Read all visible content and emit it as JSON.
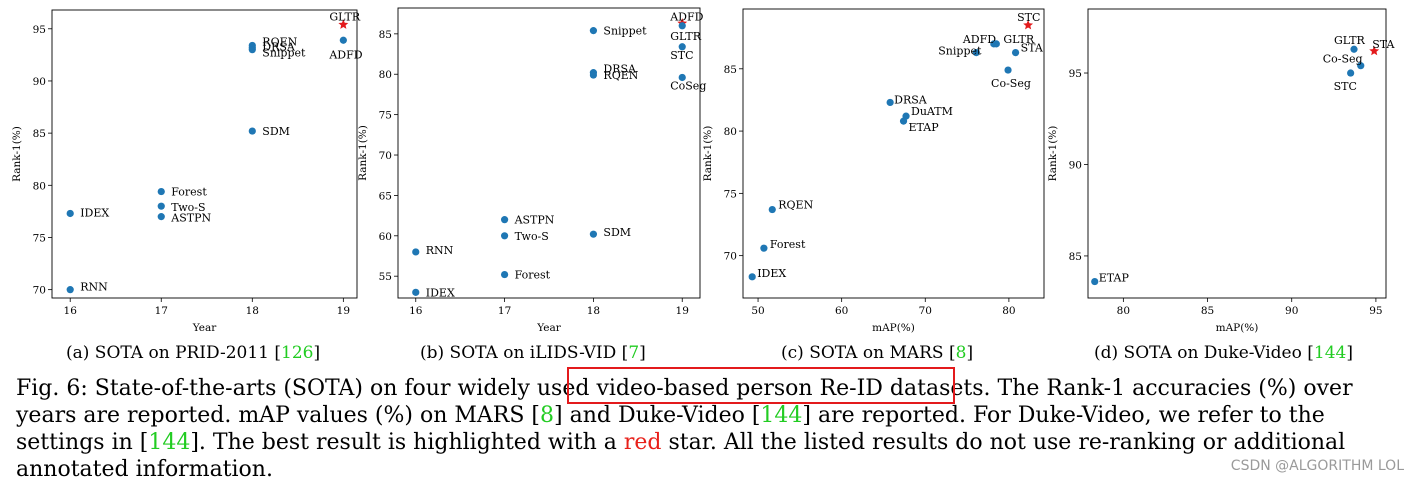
{
  "chart_data": [
    {
      "type": "scatter",
      "xlabel": "Year",
      "ylabel": "Rank-1(%)",
      "xlim": [
        15.8,
        19.15
      ],
      "ylim": [
        69.2,
        96.8
      ],
      "xticks": [
        16,
        17,
        18,
        19
      ],
      "yticks": [
        70,
        75,
        80,
        85,
        90,
        95
      ],
      "points": [
        {
          "label": "GLTR",
          "x": 19,
          "y": 95.4,
          "star": true
        },
        {
          "label": "ADFD",
          "x": 19,
          "y": 93.9
        },
        {
          "label": "RQEN",
          "x": 18,
          "y": 93.4
        },
        {
          "label": "DRSA",
          "x": 18,
          "y": 93.2
        },
        {
          "label": "Snippet",
          "x": 18,
          "y": 93.0
        },
        {
          "label": "SDM",
          "x": 18,
          "y": 85.2
        },
        {
          "label": "Forest",
          "x": 17,
          "y": 79.4
        },
        {
          "label": "Two-S",
          "x": 17,
          "y": 78.0
        },
        {
          "label": "ASTPN",
          "x": 17,
          "y": 77.0
        },
        {
          "label": "IDEX",
          "x": 16,
          "y": 77.3
        },
        {
          "label": "RNN",
          "x": 16,
          "y": 70.0
        }
      ],
      "caption_text": "(a) SOTA on PRID-2011 [",
      "caption_ref": "126",
      "caption_end": "]"
    },
    {
      "type": "scatter",
      "xlabel": "Year",
      "ylabel": "Rank-1(%)",
      "xlim": [
        15.8,
        19.2
      ],
      "ylim": [
        52.3,
        88.2
      ],
      "xticks": [
        16,
        17,
        18,
        19
      ],
      "yticks": [
        55,
        60,
        65,
        70,
        75,
        80,
        85
      ],
      "points": [
        {
          "label": "ADFD",
          "x": 19,
          "y": 86.3,
          "star": true
        },
        {
          "label": "GLTR",
          "x": 19,
          "y": 86.0
        },
        {
          "label": "STC",
          "x": 19,
          "y": 83.4
        },
        {
          "label": "CoSeg",
          "x": 19,
          "y": 79.6
        },
        {
          "label": "Snippet",
          "x": 18,
          "y": 85.4
        },
        {
          "label": "DRSA",
          "x": 18,
          "y": 80.2
        },
        {
          "label": "RQEN",
          "x": 18,
          "y": 79.9
        },
        {
          "label": "SDM",
          "x": 18,
          "y": 60.2
        },
        {
          "label": "ASTPN",
          "x": 17,
          "y": 62.0
        },
        {
          "label": "Two-S",
          "x": 17,
          "y": 60.0
        },
        {
          "label": "Forest",
          "x": 17,
          "y": 55.2
        },
        {
          "label": "RNN",
          "x": 16,
          "y": 58.0
        },
        {
          "label": "IDEX",
          "x": 16,
          "y": 53.0
        }
      ],
      "caption_text": "(b) SOTA on iLIDS-VID [",
      "caption_ref": "7",
      "caption_end": "]"
    },
    {
      "type": "scatter",
      "xlabel": "mAP(%)",
      "ylabel": "Rank-1(%)",
      "xlim": [
        48.2,
        84.2
      ],
      "ylim": [
        66.6,
        89.8
      ],
      "xticks": [
        50,
        60,
        70,
        80
      ],
      "yticks": [
        70,
        75,
        80,
        85
      ],
      "points": [
        {
          "label": "STC",
          "x": 82.3,
          "y": 88.5,
          "star": true
        },
        {
          "label": "ADFD",
          "x": 78.2,
          "y": 87.0
        },
        {
          "label": "GLTR",
          "x": 78.5,
          "y": 87.0
        },
        {
          "label": "STA",
          "x": 80.8,
          "y": 86.3
        },
        {
          "label": "Snippet",
          "x": 76.1,
          "y": 86.3
        },
        {
          "label": "Co-Seg",
          "x": 79.9,
          "y": 84.9
        },
        {
          "label": "DRSA",
          "x": 65.8,
          "y": 82.3
        },
        {
          "label": "DuATM",
          "x": 67.7,
          "y": 81.2
        },
        {
          "label": "ETAP",
          "x": 67.4,
          "y": 80.8
        },
        {
          "label": "RQEN",
          "x": 51.7,
          "y": 73.7
        },
        {
          "label": "Forest",
          "x": 50.7,
          "y": 70.6
        },
        {
          "label": "IDEX",
          "x": 49.3,
          "y": 68.3
        }
      ],
      "caption_text": "(c) SOTA on MARS [",
      "caption_ref": "8",
      "caption_end": "]"
    },
    {
      "type": "scatter",
      "xlabel": "mAP(%)",
      "ylabel": "Rank-1(%)",
      "xlim": [
        77.9,
        95.6
      ],
      "ylim": [
        82.7,
        98.5
      ],
      "xticks": [
        80,
        85,
        90,
        95
      ],
      "yticks": [
        85,
        90,
        95
      ],
      "points": [
        {
          "label": "STA",
          "x": 94.9,
          "y": 96.2,
          "star": true
        },
        {
          "label": "GLTR",
          "x": 93.7,
          "y": 96.3
        },
        {
          "label": "Co-Seg",
          "x": 94.1,
          "y": 95.4
        },
        {
          "label": "STC",
          "x": 93.5,
          "y": 95.0
        },
        {
          "label": "ETAP",
          "x": 78.3,
          "y": 83.6
        }
      ],
      "caption_text": "(d) SOTA on Duke-Video [",
      "caption_ref": "144",
      "caption_end": "]"
    }
  ],
  "caption": {
    "p1": "Fig. 6: State-of-the-arts (SOTA) on four widely used ",
    "p2": "video-based person Re-ID datasets.",
    "p3": " The Rank-1 accuracies (%) over years are reported. mAP values (%) on MARS [",
    "ref1": "8",
    "p4": "] and Duke-Video [",
    "ref2": "144",
    "p5": "] are reported. For Duke-Video, we refer to the settings in [",
    "ref3": "144",
    "p6": "]. The best result is highlighted with a ",
    "red_word": "red",
    "p7": " star. All the listed results do not use re-ranking or additional annotated information."
  },
  "watermark": "CSDN @ALGORITHM LOL",
  "colors": {
    "point": "#1f77b4",
    "star": "#e31a1c",
    "highlight": "#e31a1c",
    "ref": "#22cc22"
  }
}
